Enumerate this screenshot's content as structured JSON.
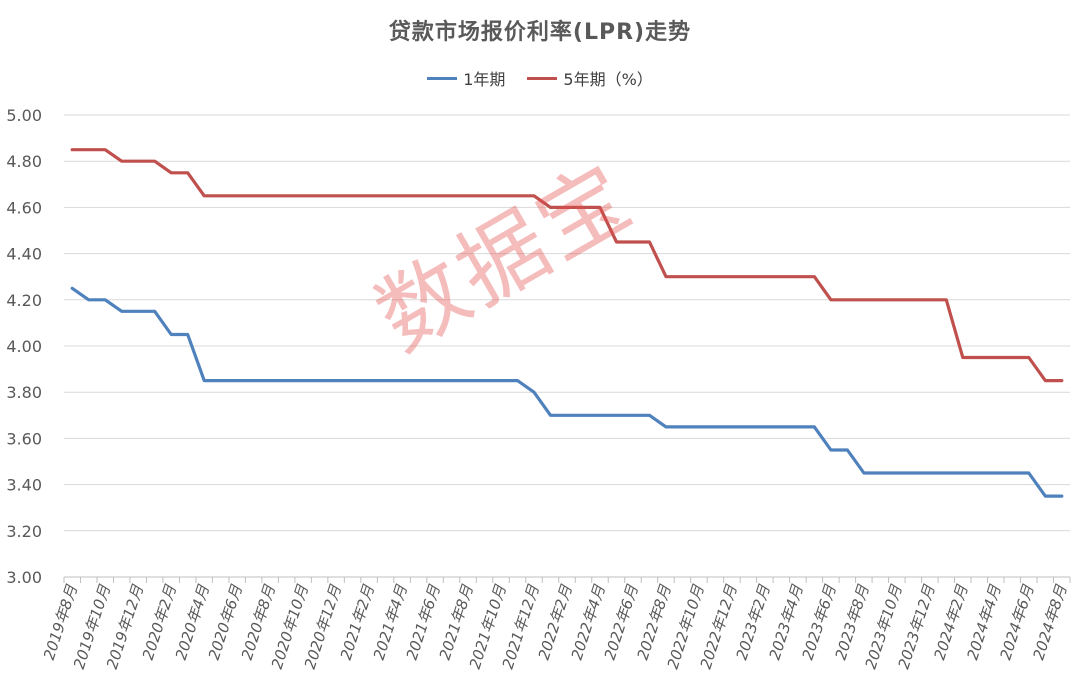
{
  "title": "贷款市场报价利率(LPR)走势",
  "watermark": "数据宝",
  "chart_data": {
    "type": "line",
    "title": "贷款市场报价利率(LPR)走势",
    "xlabel": "",
    "ylabel": "",
    "ylim": [
      3.0,
      5.0
    ],
    "yticks": [
      "3.00",
      "3.20",
      "3.40",
      "3.60",
      "3.80",
      "4.00",
      "4.20",
      "4.40",
      "4.60",
      "4.80",
      "5.00"
    ],
    "grid": true,
    "legend_position": "top-center",
    "x": [
      "2019年8月",
      "2019年9月",
      "2019年10月",
      "2019年11月",
      "2019年12月",
      "2020年1月",
      "2020年2月",
      "2020年3月",
      "2020年4月",
      "2020年5月",
      "2020年6月",
      "2020年7月",
      "2020年8月",
      "2020年9月",
      "2020年10月",
      "2020年11月",
      "2020年12月",
      "2021年1月",
      "2021年2月",
      "2021年3月",
      "2021年4月",
      "2021年5月",
      "2021年6月",
      "2021年7月",
      "2021年8月",
      "2021年9月",
      "2021年10月",
      "2021年11月",
      "2021年12月",
      "2022年1月",
      "2022年2月",
      "2022年3月",
      "2022年4月",
      "2022年5月",
      "2022年6月",
      "2022年7月",
      "2022年8月",
      "2022年9月",
      "2022年10月",
      "2022年11月",
      "2022年12月",
      "2023年1月",
      "2023年2月",
      "2023年3月",
      "2023年4月",
      "2023年5月",
      "2023年6月",
      "2023年7月",
      "2023年8月",
      "2023年9月",
      "2023年10月",
      "2023年11月",
      "2023年12月",
      "2024年1月",
      "2024年2月",
      "2024年3月",
      "2024年4月",
      "2024年5月",
      "2024年6月",
      "2024年7月",
      "2024年8月"
    ],
    "tick_labels": [
      "2019年8月",
      "2019年10月",
      "2019年12月",
      "2020年2月",
      "2020年4月",
      "2020年6月",
      "2020年8月",
      "2020年10月",
      "2020年12月",
      "2021年2月",
      "2021年4月",
      "2021年6月",
      "2021年8月",
      "2021年10月",
      "2021年12月",
      "2022年2月",
      "2022年4月",
      "2022年6月",
      "2022年8月",
      "2022年10月",
      "2022年12月",
      "2023年2月",
      "2023年4月",
      "2023年6月",
      "2023年8月",
      "2023年10月",
      "2023年12月",
      "2024年2月",
      "2024年4月",
      "2024年6月",
      "2024年8月"
    ],
    "series": [
      {
        "name": "1年期",
        "color": "#4F81BD",
        "values": [
          4.25,
          4.2,
          4.2,
          4.15,
          4.15,
          4.15,
          4.05,
          4.05,
          3.85,
          3.85,
          3.85,
          3.85,
          3.85,
          3.85,
          3.85,
          3.85,
          3.85,
          3.85,
          3.85,
          3.85,
          3.85,
          3.85,
          3.85,
          3.85,
          3.85,
          3.85,
          3.85,
          3.85,
          3.8,
          3.7,
          3.7,
          3.7,
          3.7,
          3.7,
          3.7,
          3.7,
          3.65,
          3.65,
          3.65,
          3.65,
          3.65,
          3.65,
          3.65,
          3.65,
          3.65,
          3.65,
          3.55,
          3.55,
          3.45,
          3.45,
          3.45,
          3.45,
          3.45,
          3.45,
          3.45,
          3.45,
          3.45,
          3.45,
          3.45,
          3.35,
          3.35
        ]
      },
      {
        "name": "5年期（%）",
        "color": "#C0504D",
        "values": [
          4.85,
          4.85,
          4.85,
          4.8,
          4.8,
          4.8,
          4.75,
          4.75,
          4.65,
          4.65,
          4.65,
          4.65,
          4.65,
          4.65,
          4.65,
          4.65,
          4.65,
          4.65,
          4.65,
          4.65,
          4.65,
          4.65,
          4.65,
          4.65,
          4.65,
          4.65,
          4.65,
          4.65,
          4.65,
          4.6,
          4.6,
          4.6,
          4.6,
          4.45,
          4.45,
          4.45,
          4.3,
          4.3,
          4.3,
          4.3,
          4.3,
          4.3,
          4.3,
          4.3,
          4.3,
          4.3,
          4.2,
          4.2,
          4.2,
          4.2,
          4.2,
          4.2,
          4.2,
          4.2,
          3.95,
          3.95,
          3.95,
          3.95,
          3.95,
          3.85,
          3.85
        ]
      }
    ]
  }
}
